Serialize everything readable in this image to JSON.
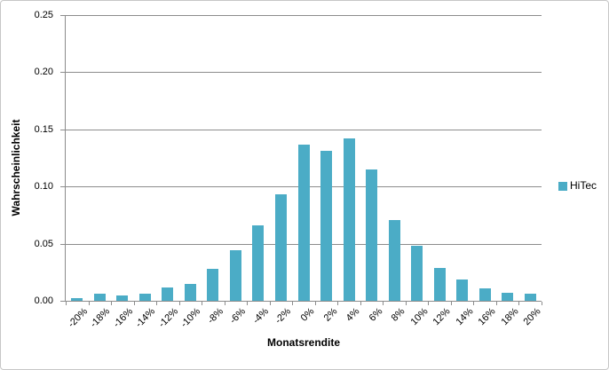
{
  "window": {
    "background": "#ffffff",
    "border_color": "#c6c6c6"
  },
  "colors": {
    "bar_fill": "#4BACC6",
    "gridline": "#8c8c8c",
    "axis": "#8c8c8c",
    "text": "#000000"
  },
  "legend": {
    "label": "HiTec",
    "swatch_color": "#4BACC6"
  },
  "chart_data": {
    "type": "bar",
    "title": "",
    "categories": [
      "-20%",
      "-18%",
      "-16%",
      "-14%",
      "-12%",
      "-10%",
      "-8%",
      "-6%",
      "-4%",
      "-2%",
      "0%",
      "2%",
      "4%",
      "6%",
      "8%",
      "10%",
      "12%",
      "14%",
      "16%",
      "18%",
      "20%"
    ],
    "series": [
      {
        "name": "HiTec",
        "color": "#4BACC6",
        "values": [
          0.002,
          0.006,
          0.005,
          0.006,
          0.012,
          0.015,
          0.028,
          0.044,
          0.066,
          0.093,
          0.137,
          0.131,
          0.142,
          0.115,
          0.071,
          0.048,
          0.029,
          0.019,
          0.011,
          0.007,
          0.006
        ]
      }
    ],
    "xlabel": "Monatsrendite",
    "ylabel": "Wahrscheinlichkeit",
    "ylim": [
      0,
      0.25
    ],
    "yticks": [
      0,
      0.05,
      0.1,
      0.15,
      0.2,
      0.25
    ],
    "ytick_labels": [
      "0.00",
      "0.05",
      "0.10",
      "0.15",
      "0.20",
      "0.25"
    ],
    "grid": true,
    "legend_position": "right",
    "x_labels_rotation_deg": -45
  }
}
